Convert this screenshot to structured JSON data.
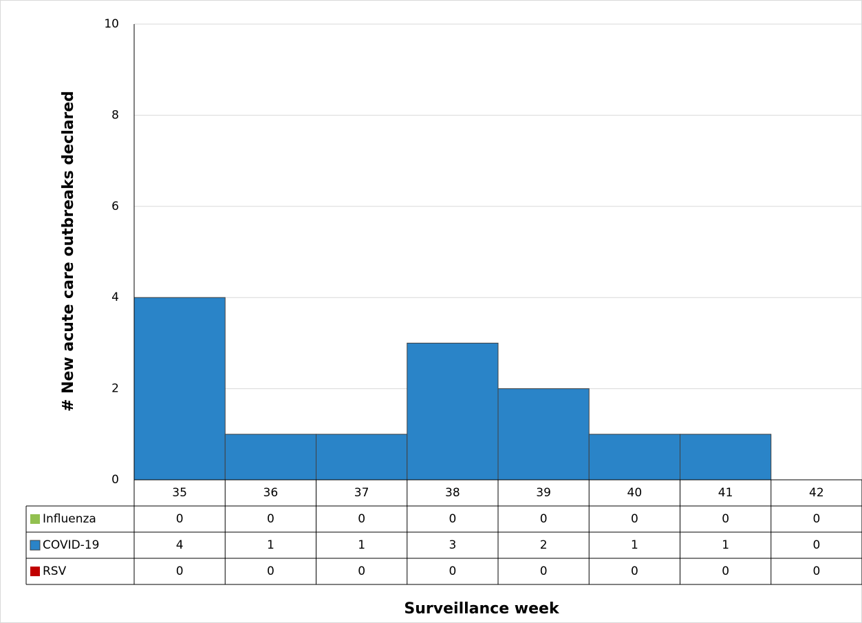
{
  "chart_data": {
    "type": "bar",
    "stacked": true,
    "y_label": "# New acute care outbreaks declared",
    "x_label": "Surveillance week",
    "categories": [
      "35",
      "36",
      "37",
      "38",
      "39",
      "40",
      "41",
      "42"
    ],
    "series": [
      {
        "name": "Influenza",
        "color": "#92c050",
        "values": [
          0,
          0,
          0,
          0,
          0,
          0,
          0,
          0
        ]
      },
      {
        "name": "COVID-19",
        "color": "#2a84c8",
        "values": [
          4,
          1,
          1,
          3,
          2,
          1,
          1,
          0
        ]
      },
      {
        "name": "RSV",
        "color": "#c00000",
        "values": [
          0,
          0,
          0,
          0,
          0,
          0,
          0,
          0
        ]
      }
    ],
    "ylim": [
      0,
      10
    ],
    "yticks": [
      0,
      2,
      4,
      6,
      8,
      10
    ],
    "grid": true
  }
}
